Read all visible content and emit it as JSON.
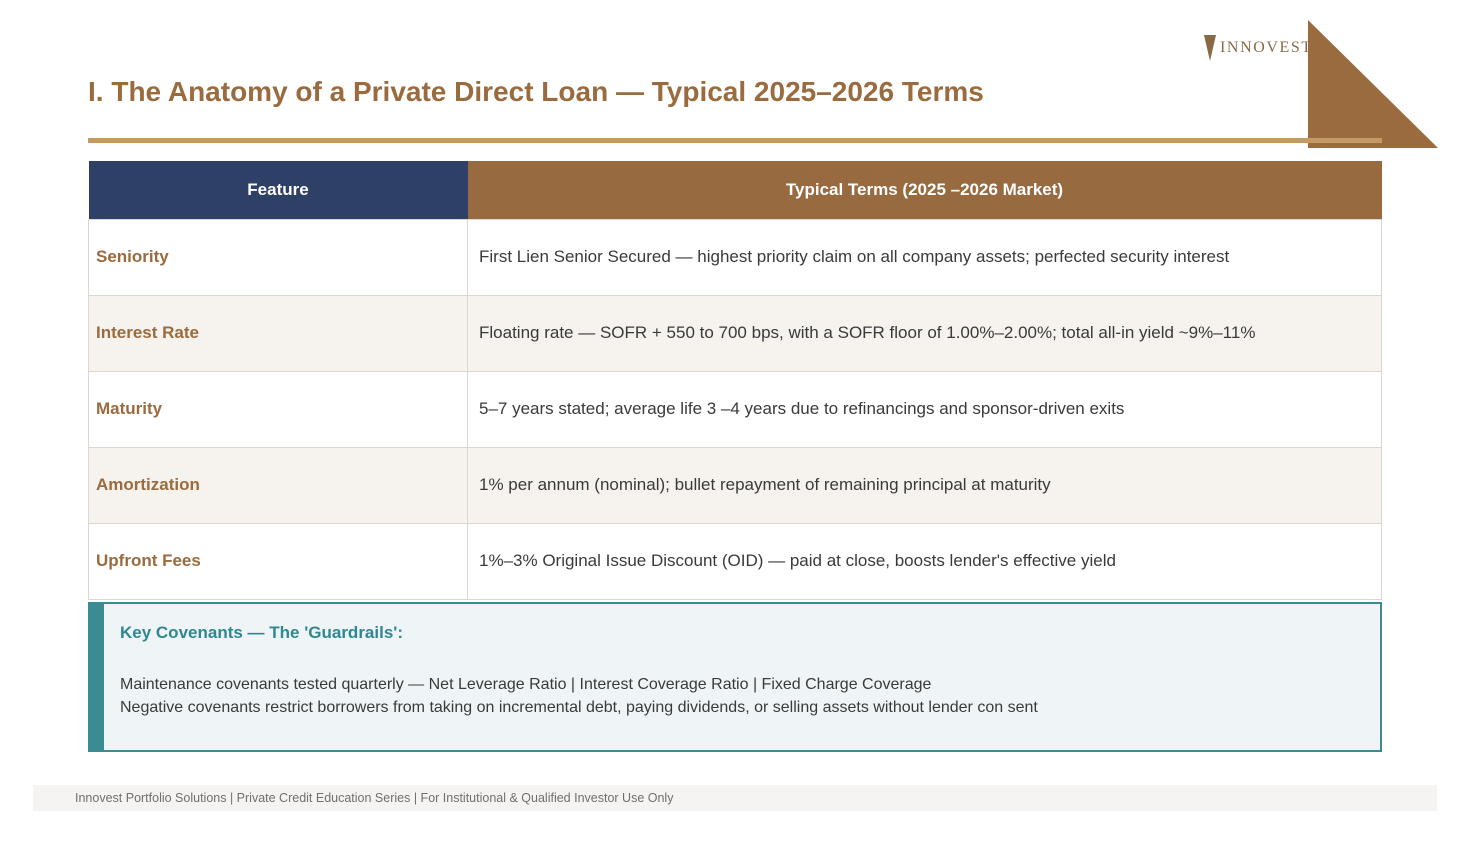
{
  "brand": {
    "logo_text": "INNOVEST",
    "logo_color": "#8a6a45",
    "corner_color": "#9a6b3e"
  },
  "header": {
    "title": "I. The Anatomy of a Private Direct Loan  — Typical 2025–2026 Terms"
  },
  "table": {
    "columns": [
      "Feature",
      "Typical Terms (2025 –2026 Market)"
    ],
    "header_colors": [
      "#2e4066",
      "#976a3f"
    ],
    "rows": [
      {
        "feature": "Seniority",
        "terms": "First Lien Senior Secured — highest priority claim on all company assets; perfected security interest"
      },
      {
        "feature": "Interest Rate",
        "terms": "Floating rate — SOFR + 550 to 700 bps, with a SOFR floor of 1.00%–2.00%; total all-in yield ~9%–11%"
      },
      {
        "feature": "Maturity",
        "terms": "5–7 years stated; average life 3 –4 years due to refinancings and sponsor-driven exits"
      },
      {
        "feature": "Amortization",
        "terms": "1% per annum (nominal); bullet repayment of remaining principal at maturity"
      },
      {
        "feature": "Upfront Fees",
        "terms": "1%–3% Original Issue Discount (OID) — paid at close, boosts lender's effective yield"
      }
    ]
  },
  "covenants": {
    "title": "Key Covenants — The 'Guardrails':",
    "lines": [
      "Maintenance covenants tested quarterly — Net Leverage Ratio | Interest Coverage Ratio | Fixed Charge Coverage",
      "Negative covenants restrict borrowers from taking on incremental debt, paying dividends, or selling assets without lender con sent"
    ],
    "accent_color": "#3b8b93"
  },
  "footer": {
    "text": "Innovest Portfolio Solutions | Private Credit Education Series | For Institutional & Qualified Investor Use Only"
  }
}
